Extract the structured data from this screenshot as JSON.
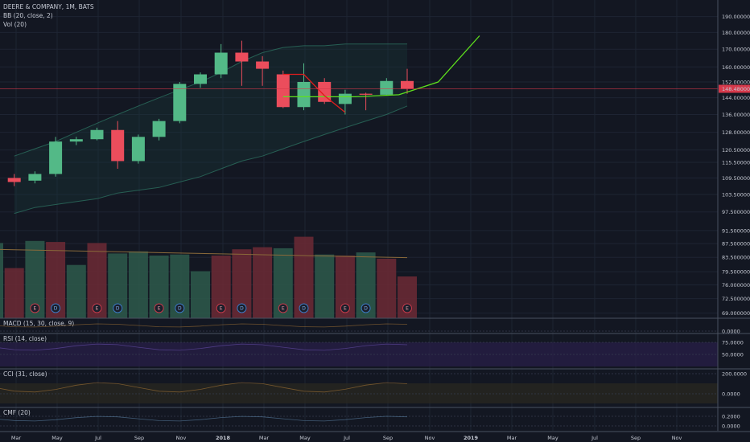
{
  "header": {
    "symbol": "DEERE & COMPANY, 1M, BATS",
    "bb": "BB (20, close, 2)",
    "vol": "Vol (20)"
  },
  "colors": {
    "bg": "#131722",
    "up": "#53b987",
    "down": "#eb4d5c",
    "up_vol": "#2e5b4b",
    "down_vol": "#6d2a35",
    "projection": "#5ee01d",
    "pattern": "#e01d1d",
    "price_line": "#d6394b"
  },
  "chart_data": {
    "type": "candlestick",
    "y_scale": "log",
    "ylim": [
      68,
      200
    ],
    "x_labels": [
      "Mar",
      "May",
      "Jul",
      "Sep",
      "Nov",
      "2018",
      "Mar",
      "May",
      "Jul",
      "Sep",
      "Nov",
      "2019",
      "Mar",
      "May",
      "Jul",
      "Sep",
      "Nov"
    ],
    "y_ticks": [
      "190.0000000",
      "180.0000000",
      "170.0000000",
      "160.0000000",
      "152.0000000",
      "144.0000000",
      "136.0000000",
      "128.0000000",
      "120.5000000",
      "115.5000000",
      "109.5000000",
      "103.5000000",
      "97.5000000",
      "91.5000000",
      "87.5000000",
      "83.5000000",
      "79.5000000",
      "76.0000000",
      "72.5000000",
      "69.0000000"
    ],
    "current_price": "148.4800000",
    "candles": [
      {
        "o": 106.0,
        "h": 108.5,
        "l": 104.0,
        "c": 107.5
      },
      {
        "o": 109.5,
        "h": 111.0,
        "l": 106.5,
        "c": 108.0
      },
      {
        "o": 108.5,
        "h": 112.0,
        "l": 107.5,
        "c": 111.0
      },
      {
        "o": 111.0,
        "h": 126.0,
        "l": 110.0,
        "c": 124.0
      },
      {
        "o": 124.0,
        "h": 126.0,
        "l": 122.5,
        "c": 125.0
      },
      {
        "o": 125.0,
        "h": 130.0,
        "l": 124.5,
        "c": 129.0
      },
      {
        "o": 129.0,
        "h": 133.0,
        "l": 113.0,
        "c": 116.0
      },
      {
        "o": 116.0,
        "h": 127.0,
        "l": 115.0,
        "c": 126.0
      },
      {
        "o": 126.0,
        "h": 134.0,
        "l": 124.5,
        "c": 133.0
      },
      {
        "o": 133.0,
        "h": 152.0,
        "l": 132.0,
        "c": 151.0
      },
      {
        "o": 151.0,
        "h": 157.0,
        "l": 149.0,
        "c": 156.0
      },
      {
        "o": 156.0,
        "h": 173.0,
        "l": 154.0,
        "c": 168.0
      },
      {
        "o": 168.0,
        "h": 175.0,
        "l": 150.0,
        "c": 163.0
      },
      {
        "o": 163.0,
        "h": 166.0,
        "l": 150.0,
        "c": 159.0
      },
      {
        "o": 156.0,
        "h": 158.0,
        "l": 139.0,
        "c": 139.5
      },
      {
        "o": 139.5,
        "h": 162.0,
        "l": 138.0,
        "c": 152.0
      },
      {
        "o": 152.0,
        "h": 154.0,
        "l": 141.0,
        "c": 142.0
      },
      {
        "o": 141.0,
        "h": 148.0,
        "l": 136.0,
        "c": 146.0
      },
      {
        "o": 146.0,
        "h": 146.5,
        "l": 138.0,
        "c": 145.5
      },
      {
        "o": 145.5,
        "h": 154.0,
        "l": 145.0,
        "c": 152.5
      },
      {
        "o": 152.5,
        "h": 159.0,
        "l": 146.0,
        "c": 148.5
      }
    ],
    "volume": [
      0.72,
      0.48,
      0.74,
      0.73,
      0.51,
      0.72,
      0.62,
      0.64,
      0.6,
      0.61,
      0.45,
      0.6,
      0.66,
      0.68,
      0.67,
      0.78,
      0.61,
      0.6,
      0.63,
      0.57,
      0.4
    ],
    "volume_up": [
      true,
      false,
      true,
      false,
      true,
      false,
      true,
      true,
      true,
      true,
      true,
      false,
      false,
      false,
      true,
      false,
      true,
      false,
      true,
      false,
      false
    ],
    "markers": [
      {
        "bar": 0,
        "t": "D"
      },
      {
        "bar": 2,
        "t": "E"
      },
      {
        "bar": 3,
        "t": "D"
      },
      {
        "bar": 5,
        "t": "E"
      },
      {
        "bar": 6,
        "t": "D"
      },
      {
        "bar": 8,
        "t": "E"
      },
      {
        "bar": 9,
        "t": "D"
      },
      {
        "bar": 11,
        "t": "E"
      },
      {
        "bar": 12,
        "t": "D"
      },
      {
        "bar": 14,
        "t": "E"
      },
      {
        "bar": 15,
        "t": "D"
      },
      {
        "bar": 17,
        "t": "E"
      },
      {
        "bar": 18,
        "t": "D"
      },
      {
        "bar": 20,
        "t": "E"
      }
    ],
    "projection": [
      [
        14.0,
        144.5
      ],
      [
        17.5,
        144.5
      ],
      [
        19.6,
        145.5
      ],
      [
        21.5,
        152.0
      ],
      [
        23.5,
        178.0
      ]
    ],
    "pattern": [
      [
        14.0,
        156.0
      ],
      [
        15.0,
        156.0
      ],
      [
        16.0,
        145.0
      ],
      [
        17.0,
        137.0
      ]
    ],
    "bb_upper": [
      118,
      121,
      124,
      128,
      132,
      136,
      140,
      144,
      148,
      152,
      157,
      163,
      168,
      171,
      172,
      172,
      173,
      173,
      173,
      173
    ],
    "bb_lower": [
      97,
      99,
      100,
      101,
      102,
      104,
      105,
      106,
      108,
      110,
      113,
      116,
      118,
      121,
      124,
      127,
      130,
      133,
      136,
      140
    ],
    "indicators": [
      {
        "name": "MACD (15, 30, close, 9)",
        "ticks": [
          "0.0000"
        ]
      },
      {
        "name": "RSI (14, close)",
        "ticks": [
          "75.0000",
          "50.0000"
        ]
      },
      {
        "name": "CCI (31, close)",
        "ticks": [
          "200.0000",
          "0.0000"
        ]
      },
      {
        "name": "CMF (20)",
        "ticks": [
          "0.2000",
          "0.0000"
        ]
      }
    ]
  }
}
